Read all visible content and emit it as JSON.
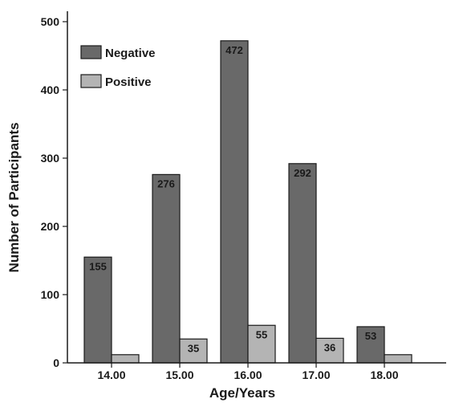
{
  "chart_data": {
    "type": "bar",
    "title": "",
    "xlabel": "Age/Years",
    "ylabel": "Number of Participants",
    "categories": [
      "14.00",
      "15.00",
      "16.00",
      "17.00",
      "18.00"
    ],
    "series": [
      {
        "name": "Negative",
        "color": "#696969",
        "values": [
          155,
          276,
          472,
          292,
          53
        ],
        "labels": [
          "155",
          "276",
          "472",
          "292",
          "53"
        ]
      },
      {
        "name": "Positive",
        "color": "#b4b4b4",
        "values": [
          12,
          35,
          55,
          36,
          12
        ],
        "labels": [
          "",
          "35",
          "55",
          "36",
          ""
        ]
      }
    ],
    "yticks": [
      0,
      100,
      200,
      300,
      400,
      500
    ],
    "ytick_labels": [
      "0",
      "100",
      "200",
      "300",
      "400",
      "500"
    ],
    "ylim": [
      0,
      500
    ],
    "grid": false,
    "legend": "top-left"
  }
}
